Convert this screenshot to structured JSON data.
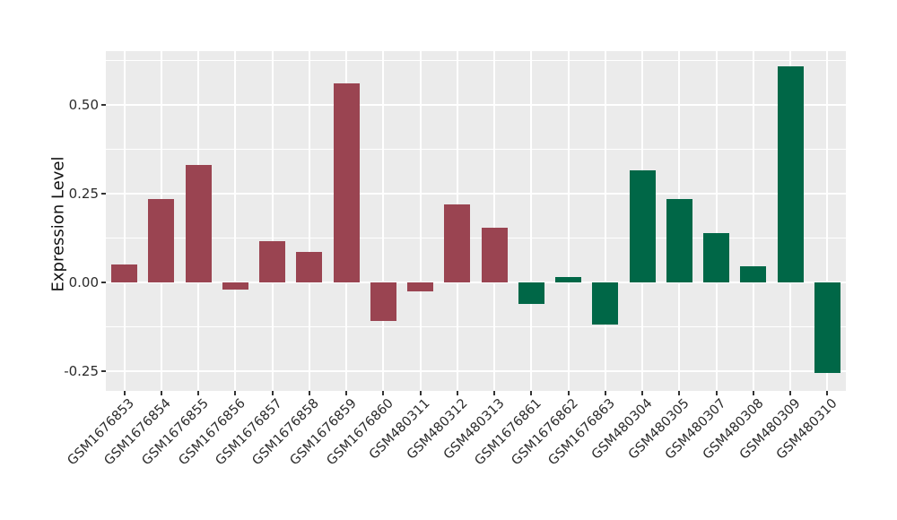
{
  "figure": {
    "background_color": "#ffffff",
    "panel_background_color": "#ebebeb",
    "gridline_color": "#ffffff",
    "axis_text_color": "#2b2b2b",
    "tick_mark_color": "#333333"
  },
  "chart_data": {
    "type": "bar",
    "title": "",
    "xlabel": "",
    "ylabel": "Expression Level",
    "categories": [
      "GSM1676853",
      "GSM1676854",
      "GSM1676855",
      "GSM1676856",
      "GSM1676857",
      "GSM1676858",
      "GSM1676859",
      "GSM1676860",
      "GSM480311",
      "GSM480312",
      "GSM480313",
      "GSM1676861",
      "GSM1676862",
      "GSM1676863",
      "GSM480304",
      "GSM480305",
      "GSM480307",
      "GSM480308",
      "GSM480309",
      "GSM480310"
    ],
    "values": [
      0.05,
      0.235,
      0.33,
      -0.02,
      0.115,
      0.085,
      0.56,
      -0.11,
      -0.025,
      0.22,
      0.155,
      -0.06,
      0.015,
      -0.12,
      0.315,
      0.235,
      0.14,
      0.045,
      0.61,
      -0.255
    ],
    "groups": [
      "group1",
      "group1",
      "group1",
      "group1",
      "group1",
      "group1",
      "group1",
      "group1",
      "group1",
      "group1",
      "group1",
      "group2",
      "group2",
      "group2",
      "group2",
      "group2",
      "group2",
      "group2",
      "group2",
      "group2"
    ],
    "group_colors": {
      "group1": "#9a4451",
      "group2": "#006747"
    },
    "ytick_labels": [
      "-0.25",
      "0.00",
      "0.25",
      "0.50"
    ],
    "ytick_values": [
      -0.25,
      0.0,
      0.25,
      0.5
    ],
    "minor_ytick_values": [
      -0.125,
      0.125,
      0.375,
      0.625
    ],
    "ylim": [
      -0.306,
      0.652
    ],
    "grid": true,
    "legend": "none",
    "bar_width_ratio": 0.7,
    "x_label_angle": -45
  }
}
